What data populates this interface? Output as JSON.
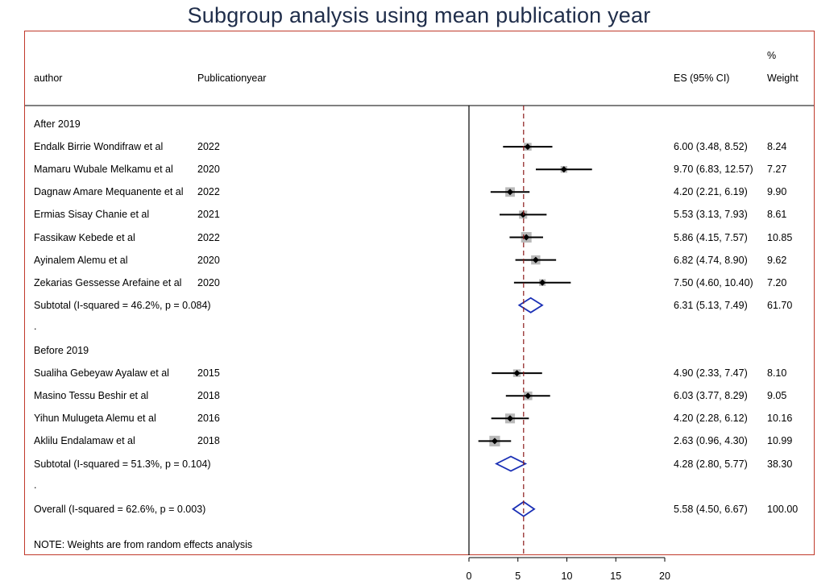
{
  "title": "Subgroup analysis using mean publication year",
  "header": {
    "author": "author",
    "year": "Publicationyear",
    "es": "ES (95% CI)",
    "pct": "%",
    "weight": "Weight"
  },
  "note": "NOTE: Weights are from random effects analysis",
  "chart_data": {
    "type": "forest",
    "xlim": [
      0,
      20
    ],
    "xticks": [
      "0",
      "5",
      "10",
      "15",
      "20"
    ],
    "overall_line": 5.58,
    "groups": [
      {
        "label": "After 2019",
        "studies": [
          {
            "author": "Endalk Birrie Wondifraw et al",
            "year": "2022",
            "es": 6.0,
            "lo": 3.48,
            "hi": 8.52,
            "es_text": "6.00 (3.48, 8.52)",
            "weight": "8.24"
          },
          {
            "author": "Mamaru Wubale Melkamu et al",
            "year": "2020",
            "es": 9.7,
            "lo": 6.83,
            "hi": 12.57,
            "es_text": "9.70 (6.83, 12.57)",
            "weight": "7.27"
          },
          {
            "author": "Dagnaw Amare Mequanente et al",
            "year": "2022",
            "es": 4.2,
            "lo": 2.21,
            "hi": 6.19,
            "es_text": "4.20 (2.21, 6.19)",
            "weight": "9.90"
          },
          {
            "author": "Ermias Sisay Chanie et al",
            "year": "2021",
            "es": 5.53,
            "lo": 3.13,
            "hi": 7.93,
            "es_text": "5.53 (3.13, 7.93)",
            "weight": "8.61"
          },
          {
            "author": "Fassikaw Kebede et al",
            "year": "2022",
            "es": 5.86,
            "lo": 4.15,
            "hi": 7.57,
            "es_text": "5.86 (4.15, 7.57)",
            "weight": "10.85"
          },
          {
            "author": "Ayinalem Alemu et al",
            "year": "2020",
            "es": 6.82,
            "lo": 4.74,
            "hi": 8.9,
            "es_text": "6.82 (4.74, 8.90)",
            "weight": "9.62"
          },
          {
            "author": "Zekarias Gessesse Arefaine et al",
            "year": "2020",
            "es": 7.5,
            "lo": 4.6,
            "hi": 10.4,
            "es_text": "7.50 (4.60, 10.40)",
            "weight": "7.20"
          }
        ],
        "subtotal": {
          "label": "Subtotal  (I-squared = 46.2%, p = 0.084)",
          "es": 6.31,
          "lo": 5.13,
          "hi": 7.49,
          "es_text": "6.31 (5.13, 7.49)",
          "weight": "61.70"
        }
      },
      {
        "label": "Before 2019",
        "studies": [
          {
            "author": "Sualiha Gebeyaw Ayalaw et al",
            "year": "2015",
            "es": 4.9,
            "lo": 2.33,
            "hi": 7.47,
            "es_text": "4.90 (2.33, 7.47)",
            "weight": "8.10"
          },
          {
            "author": "Masino Tessu Beshir et al",
            "year": "2018",
            "es": 6.03,
            "lo": 3.77,
            "hi": 8.29,
            "es_text": "6.03 (3.77, 8.29)",
            "weight": "9.05"
          },
          {
            "author": "Yihun Mulugeta Alemu et al",
            "year": "2016",
            "es": 4.2,
            "lo": 2.28,
            "hi": 6.12,
            "es_text": "4.20 (2.28, 6.12)",
            "weight": "10.16"
          },
          {
            "author": "Aklilu Endalamaw  et al",
            "year": "2018",
            "es": 2.63,
            "lo": 0.96,
            "hi": 4.3,
            "es_text": "2.63 (0.96, 4.30)",
            "weight": "10.99"
          }
        ],
        "subtotal": {
          "label": "Subtotal  (I-squared = 51.3%, p = 0.104)",
          "es": 4.28,
          "lo": 2.8,
          "hi": 5.77,
          "es_text": "4.28 (2.80, 5.77)",
          "weight": "38.30"
        }
      }
    ],
    "overall": {
      "label": "Overall  (I-squared = 62.6%, p = 0.003)",
      "es": 5.58,
      "lo": 4.5,
      "hi": 6.67,
      "es_text": "5.58 (4.50, 6.67)",
      "weight": "100.00"
    }
  }
}
